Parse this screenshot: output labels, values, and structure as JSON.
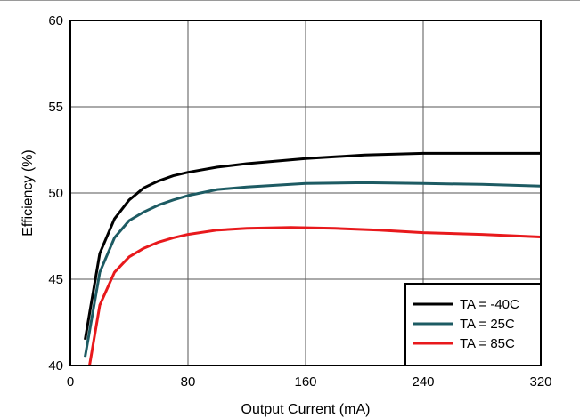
{
  "chart_data": {
    "type": "line",
    "title": "",
    "xlabel": "Output Current (mA)",
    "ylabel": "Efficiency (%)",
    "xlim": [
      0,
      320
    ],
    "ylim": [
      40,
      60
    ],
    "xticks": [
      0,
      80,
      160,
      240,
      320
    ],
    "yticks": [
      40,
      45,
      50,
      55,
      60
    ],
    "grid": true,
    "legend_position": "bottom-right",
    "series": [
      {
        "name": "TA = -40C",
        "color": "#000000",
        "points": [
          [
            10,
            41.5
          ],
          [
            20,
            46.5
          ],
          [
            30,
            48.5
          ],
          [
            40,
            49.6
          ],
          [
            50,
            50.3
          ],
          [
            60,
            50.7
          ],
          [
            70,
            51.0
          ],
          [
            80,
            51.2
          ],
          [
            100,
            51.5
          ],
          [
            120,
            51.7
          ],
          [
            160,
            52.0
          ],
          [
            200,
            52.2
          ],
          [
            240,
            52.3
          ],
          [
            280,
            52.3
          ],
          [
            320,
            52.3
          ]
        ]
      },
      {
        "name": "TA = 25C",
        "color": "#1d5b63",
        "points": [
          [
            10,
            40.5
          ],
          [
            20,
            45.4
          ],
          [
            30,
            47.4
          ],
          [
            40,
            48.4
          ],
          [
            50,
            48.9
          ],
          [
            60,
            49.3
          ],
          [
            70,
            49.6
          ],
          [
            80,
            49.85
          ],
          [
            100,
            50.2
          ],
          [
            120,
            50.35
          ],
          [
            160,
            50.55
          ],
          [
            200,
            50.6
          ],
          [
            240,
            50.55
          ],
          [
            280,
            50.5
          ],
          [
            320,
            50.4
          ]
        ]
      },
      {
        "name": "TA = 85C",
        "color": "#e8191c",
        "points": [
          [
            13,
            40.0
          ],
          [
            20,
            43.5
          ],
          [
            30,
            45.4
          ],
          [
            40,
            46.3
          ],
          [
            50,
            46.8
          ],
          [
            60,
            47.15
          ],
          [
            70,
            47.4
          ],
          [
            80,
            47.6
          ],
          [
            100,
            47.85
          ],
          [
            120,
            47.95
          ],
          [
            150,
            48.0
          ],
          [
            180,
            47.95
          ],
          [
            210,
            47.85
          ],
          [
            240,
            47.7
          ],
          [
            280,
            47.6
          ],
          [
            320,
            47.45
          ]
        ]
      }
    ]
  }
}
